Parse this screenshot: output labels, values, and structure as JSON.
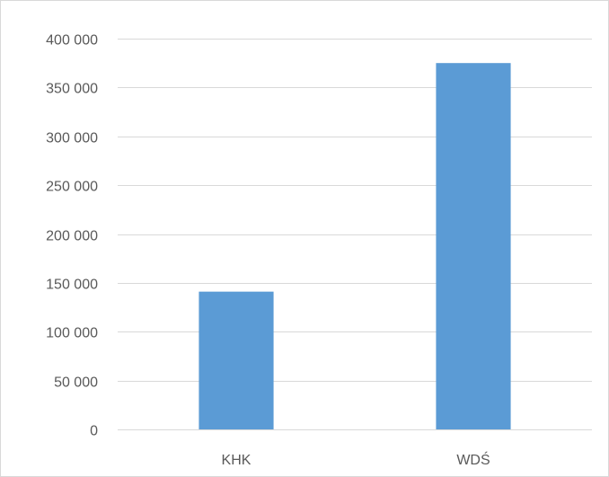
{
  "chart_data": {
    "type": "bar",
    "categories": [
      "KHK",
      "WDŚ"
    ],
    "values": [
      141000,
      375000
    ],
    "ylim": [
      0,
      400000
    ],
    "yticks": [
      {
        "value": 0,
        "label": "0"
      },
      {
        "value": 50000,
        "label": "50 000"
      },
      {
        "value": 100000,
        "label": "100 000"
      },
      {
        "value": 150000,
        "label": "150 000"
      },
      {
        "value": 200000,
        "label": "200 000"
      },
      {
        "value": 250000,
        "label": "250 000"
      },
      {
        "value": 300000,
        "label": "300 000"
      },
      {
        "value": 350000,
        "label": "350 000"
      },
      {
        "value": 400000,
        "label": "400 000"
      }
    ],
    "grid": true,
    "legend": "none",
    "bar_color": "#5b9bd5",
    "grid_color": "#d9d9d9"
  }
}
